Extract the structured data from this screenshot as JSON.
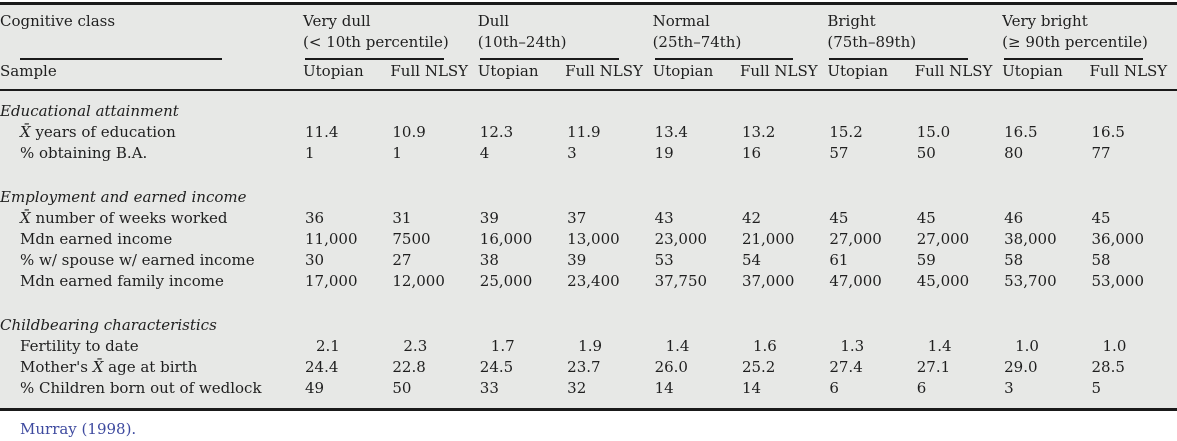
{
  "table": {
    "corner_label": "Cognitive class",
    "sample_label": "Sample",
    "column_groups": [
      {
        "name": "Very dull",
        "range": "(< 10th percentile)"
      },
      {
        "name": "Dull",
        "range": "(10th–24th)"
      },
      {
        "name": "Normal",
        "range": "(25th–74th)"
      },
      {
        "name": "Bright",
        "range": "(75th–89th)"
      },
      {
        "name": "Very bright",
        "range": "(≥ 90th percentile)"
      }
    ],
    "subcolumns": [
      "Utopian",
      "Full NLSY"
    ],
    "sections": [
      {
        "title": "Educational attainment",
        "rows": [
          {
            "label": "X̄ years of education",
            "values": [
              "11.4",
              "10.9",
              "12.3",
              "11.9",
              "13.4",
              "13.2",
              "15.2",
              "15.0",
              "16.5",
              "16.5"
            ]
          },
          {
            "label": "% obtaining B.A.",
            "values": [
              "1",
              "1",
              "4",
              "3",
              "19",
              "16",
              "57",
              "50",
              "80",
              "77"
            ]
          }
        ]
      },
      {
        "title": "Employment and earned income",
        "rows": [
          {
            "label": "X̄ number of weeks worked",
            "values": [
              "36",
              "31",
              "39",
              "37",
              "43",
              "42",
              "45",
              "45",
              "46",
              "45"
            ]
          },
          {
            "label": "Mdn earned income",
            "values": [
              "11,000",
              "7500",
              "16,000",
              "13,000",
              "23,000",
              "21,000",
              "27,000",
              "27,000",
              "38,000",
              "36,000"
            ]
          },
          {
            "label": "% w/ spouse w/ earned income",
            "values": [
              "30",
              "27",
              "38",
              "39",
              "53",
              "54",
              "61",
              "59",
              "58",
              "58"
            ]
          },
          {
            "label": "Mdn earned family income",
            "values": [
              "17,000",
              "12,000",
              "25,000",
              "23,400",
              "37,750",
              "37,000",
              "47,000",
              "45,000",
              "53,700",
              "53,000"
            ]
          }
        ]
      },
      {
        "title": "Childbearing characteristics",
        "rows": [
          {
            "label": "Fertility to date",
            "indent_values": true,
            "values": [
              "2.1",
              "2.3",
              "1.7",
              "1.9",
              "1.4",
              "1.6",
              "1.3",
              "1.4",
              "1.0",
              "1.0"
            ]
          },
          {
            "label": "Mother's X̄ age at birth",
            "values": [
              "24.4",
              "22.8",
              "24.5",
              "23.7",
              "26.0",
              "25.2",
              "27.4",
              "27.1",
              "29.0",
              "28.5"
            ]
          },
          {
            "label": "% Children born out of wedlock",
            "values": [
              "49",
              "50",
              "33",
              "32",
              "14",
              "14",
              "6",
              "6",
              "3",
              "5"
            ]
          }
        ]
      }
    ],
    "source": "Murray (1998)."
  },
  "colors": {
    "table_background": "#e7e8e6",
    "rule": "#1a1a1a",
    "text": "#1f1f1f",
    "citation_link": "#3e4a9f"
  }
}
